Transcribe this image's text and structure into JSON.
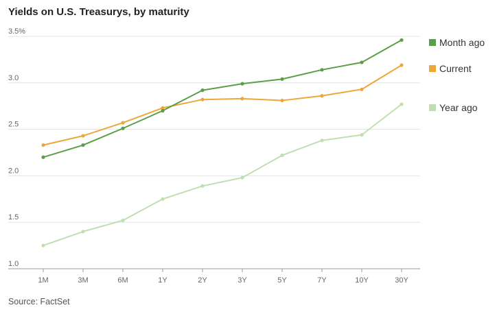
{
  "chart_data": {
    "type": "line",
    "title": "Yields on U.S. Treasurys, by maturity",
    "source": "Source: FactSet",
    "categories": [
      "1M",
      "3M",
      "6M",
      "1Y",
      "2Y",
      "3Y",
      "5Y",
      "7Y",
      "10Y",
      "30Y"
    ],
    "y_ticks": [
      "1.0",
      "1.5",
      "2.0",
      "2.5",
      "3.0",
      "3.5%"
    ],
    "y_tick_values": [
      1.0,
      1.5,
      2.0,
      2.5,
      3.0,
      3.5
    ],
    "ylim": [
      1.0,
      3.5
    ],
    "grid": true,
    "legend_position": "right",
    "series": [
      {
        "name": "Month ago",
        "color": "#5a9e47",
        "values": [
          2.2,
          2.33,
          2.51,
          2.7,
          2.92,
          2.99,
          3.04,
          3.14,
          3.22,
          3.46
        ]
      },
      {
        "name": "Current",
        "color": "#eea63a",
        "values": [
          2.33,
          2.43,
          2.57,
          2.73,
          2.82,
          2.83,
          2.81,
          2.86,
          2.93,
          3.19
        ]
      },
      {
        "name": "Year ago",
        "color": "#c0dfb0",
        "values": [
          1.25,
          1.4,
          1.52,
          1.75,
          1.89,
          1.98,
          2.22,
          2.38,
          2.44,
          2.77
        ]
      }
    ]
  }
}
